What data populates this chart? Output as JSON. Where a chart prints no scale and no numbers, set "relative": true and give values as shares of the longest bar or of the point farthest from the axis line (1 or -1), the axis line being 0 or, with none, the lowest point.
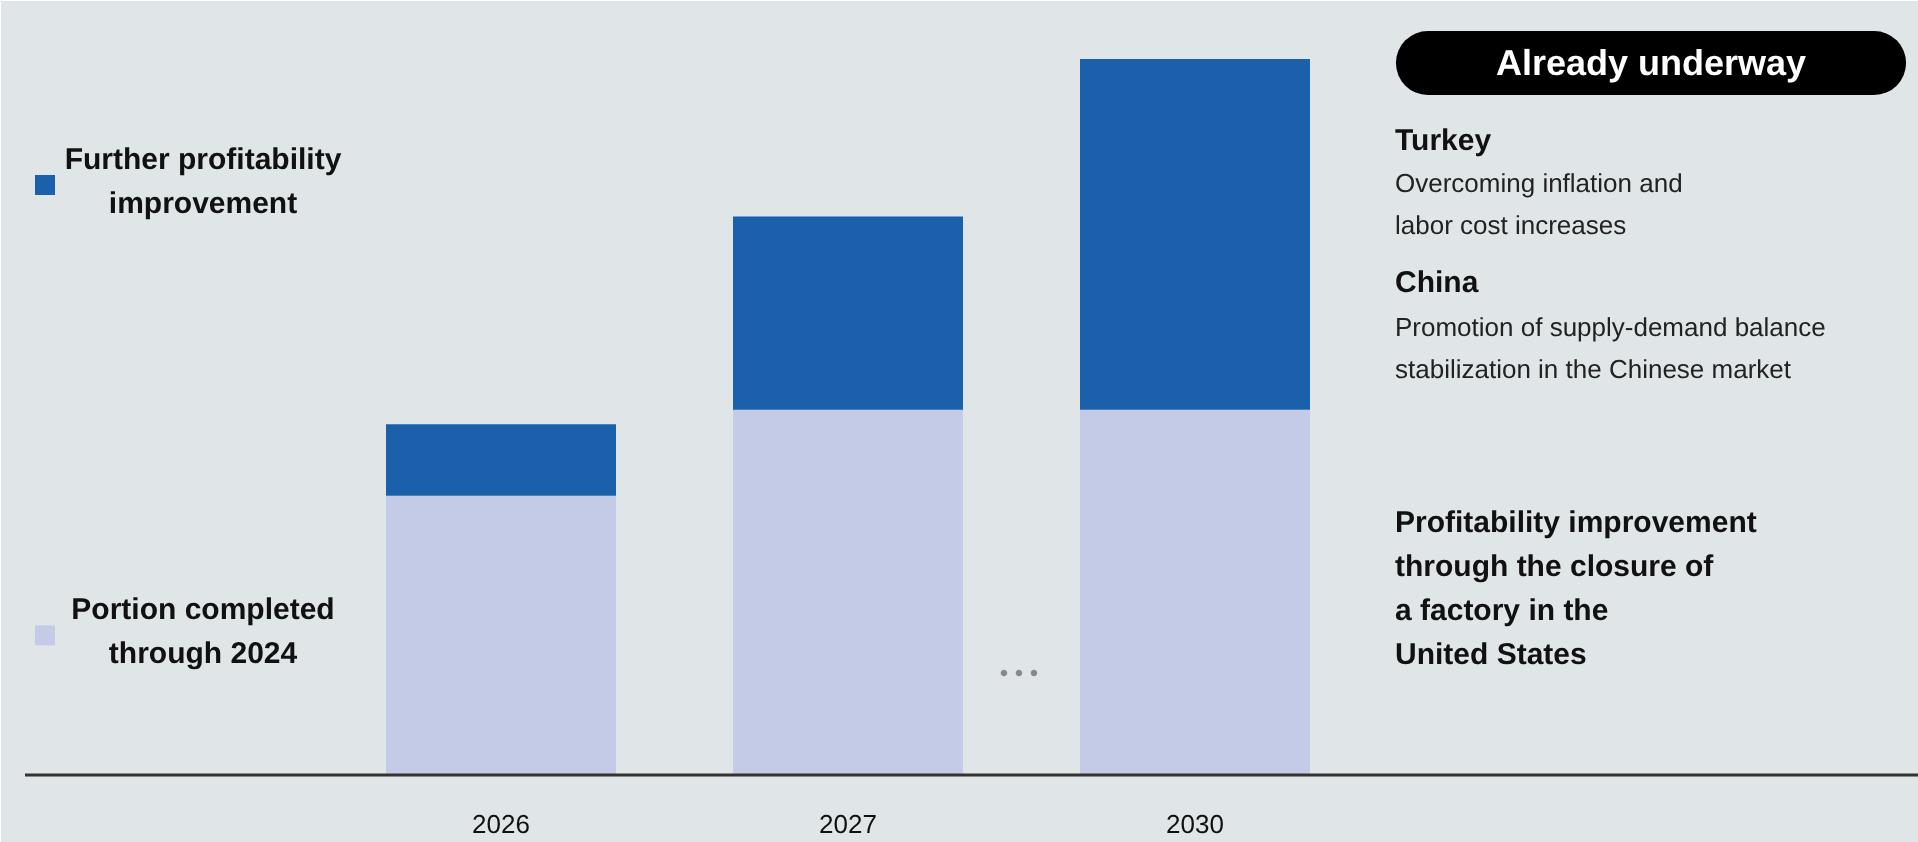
{
  "chart_data": {
    "type": "bar",
    "stacked": true,
    "relative": true,
    "categories": [
      "2026",
      "2027",
      "2030"
    ],
    "legend": "left",
    "series": [
      {
        "name": "Portion completed\nthrough 2024",
        "color": "#c4cbe6",
        "values": [
          0.39,
          0.51,
          0.51
        ]
      },
      {
        "name": "Further profitability\nimprovement",
        "color": "#1b60ab",
        "values": [
          0.1,
          0.27,
          0.49
        ]
      }
    ],
    "annotations": [
      "Already underway",
      "Turkey",
      "Overcoming inflation and\nlabor cost increases",
      "China",
      "Promotion of supply-demand balance\nstabilization in the Chinese market",
      "Profitability improvement\nthrough the closure of\na factory in the\nUnited States",
      "• • •"
    ]
  }
}
